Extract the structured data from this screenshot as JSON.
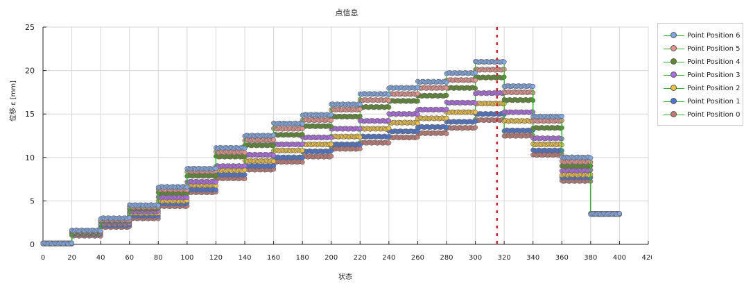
{
  "title": "点信息",
  "xlabel": "状态",
  "ylabel": "位移 ε [mm]",
  "legend": {
    "items": [
      {
        "label": "Point Position 6",
        "color": "#7fa8e8"
      },
      {
        "label": "Point Position 5",
        "color": "#e8928c"
      },
      {
        "label": "Point Position 4",
        "color": "#5c8a2a"
      },
      {
        "label": "Point Position 3",
        "color": "#b26ae8"
      },
      {
        "label": "Point Position 2",
        "color": "#f0c040"
      },
      {
        "label": "Point Position 1",
        "color": "#4a74d4"
      },
      {
        "label": "Point Position 0",
        "color": "#c47a74"
      }
    ]
  },
  "chart_data": {
    "type": "line",
    "title": "点信息",
    "xlabel": "状态",
    "ylabel": "位移 ε [mm]",
    "xlim": [
      0,
      420
    ],
    "ylim": [
      0,
      25
    ],
    "xticks": [
      0,
      20,
      40,
      60,
      80,
      100,
      120,
      140,
      160,
      180,
      200,
      220,
      240,
      260,
      280,
      300,
      320,
      340,
      360,
      380,
      400,
      420
    ],
    "yticks": [
      0,
      5,
      10,
      15,
      20,
      25
    ],
    "grid": true,
    "legend_position": "right",
    "connector_color": "#22bb22",
    "marker": "circle",
    "vertical_marker": {
      "x": 315,
      "style": "dashed",
      "color": "#e02020"
    },
    "segments_x": [
      [
        0,
        20
      ],
      [
        20,
        40
      ],
      [
        40,
        60
      ],
      [
        60,
        80
      ],
      [
        80,
        100
      ],
      [
        100,
        120
      ],
      [
        120,
        140
      ],
      [
        140,
        160
      ],
      [
        160,
        180
      ],
      [
        180,
        200
      ],
      [
        200,
        220
      ],
      [
        220,
        240
      ],
      [
        240,
        260
      ],
      [
        260,
        280
      ],
      [
        280,
        300
      ],
      [
        300,
        320
      ],
      [
        320,
        340
      ],
      [
        340,
        360
      ],
      [
        360,
        380
      ],
      [
        380,
        400
      ]
    ],
    "series": [
      {
        "name": "Point Position 6",
        "color": "#7fa8e8",
        "values": [
          0.1,
          1.6,
          3.0,
          4.5,
          6.6,
          8.7,
          11.1,
          12.5,
          13.9,
          14.9,
          16.1,
          17.3,
          18.0,
          18.7,
          19.7,
          21.0,
          18.2,
          14.7,
          10.0,
          3.5
        ]
      },
      {
        "name": "Point Position 5",
        "color": "#e8928c",
        "values": [
          0.1,
          1.5,
          2.8,
          4.3,
          6.3,
          8.4,
          10.6,
          12.0,
          13.3,
          14.3,
          15.5,
          16.6,
          17.3,
          18.0,
          18.9,
          20.1,
          17.5,
          14.2,
          9.5,
          3.5
        ]
      },
      {
        "name": "Point Position 4",
        "color": "#5c8a2a",
        "values": [
          0.1,
          1.4,
          2.7,
          4.1,
          5.9,
          7.9,
          10.1,
          11.4,
          12.6,
          13.6,
          14.7,
          15.8,
          16.5,
          17.1,
          18.0,
          19.2,
          16.6,
          13.4,
          9.0,
          3.5
        ]
      },
      {
        "name": "Point Position 3",
        "color": "#b26ae8",
        "values": [
          0.1,
          1.4,
          2.5,
          3.8,
          5.4,
          7.2,
          9.0,
          10.3,
          11.5,
          12.3,
          13.3,
          14.2,
          15.0,
          15.5,
          16.3,
          17.4,
          15.2,
          12.2,
          8.5,
          3.5
        ]
      },
      {
        "name": "Point Position 2",
        "color": "#f0c040",
        "values": [
          0.1,
          1.3,
          2.4,
          3.6,
          5.0,
          6.8,
          8.5,
          9.6,
          10.8,
          11.5,
          12.4,
          13.3,
          14.0,
          14.5,
          15.2,
          16.2,
          14.2,
          11.5,
          8.0,
          3.5
        ]
      },
      {
        "name": "Point Position 1",
        "color": "#4a74d4",
        "values": [
          0.1,
          1.2,
          2.2,
          3.3,
          4.7,
          6.3,
          8.0,
          9.0,
          10.0,
          10.7,
          11.5,
          12.4,
          13.0,
          13.5,
          14.1,
          15.0,
          13.1,
          10.8,
          7.7,
          3.5
        ]
      },
      {
        "name": "Point Position 0",
        "color": "#c47a74",
        "values": [
          0.1,
          1.0,
          2.0,
          3.0,
          4.4,
          6.0,
          7.6,
          8.6,
          9.5,
          10.1,
          11.0,
          11.7,
          12.3,
          12.8,
          13.4,
          14.3,
          12.5,
          10.3,
          7.3,
          3.5
        ]
      }
    ]
  }
}
